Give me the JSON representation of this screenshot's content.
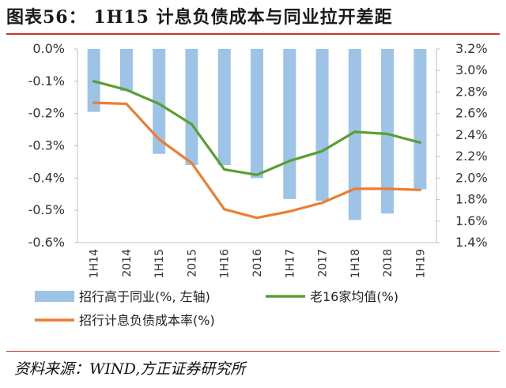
{
  "header": {
    "title": "图表56：  1H15 计息负债成本与同业拉开差距"
  },
  "footer": {
    "source": "资料来源：WIND,方正证券研究所"
  },
  "colors": {
    "bar": "#9dc3e6",
    "avg_line": "#5a9e32",
    "rate_line": "#ed7d31",
    "rule": "#c0392b"
  },
  "chart_data": {
    "type": "bar+line",
    "categories": [
      "1H14",
      "2014",
      "1H15",
      "2015",
      "1H16",
      "2016",
      "1H17",
      "2017",
      "1H18",
      "2018",
      "1H19"
    ],
    "left_axis": {
      "min": -0.6,
      "max": 0.0,
      "step": 0.1,
      "ticks": [
        "0.0%",
        "-0.1%",
        "-0.2%",
        "-0.3%",
        "-0.4%",
        "-0.5%",
        "-0.6%"
      ]
    },
    "right_axis": {
      "min": 1.4,
      "max": 3.2,
      "step": 0.2,
      "ticks": [
        "3.2%",
        "3.0%",
        "2.8%",
        "2.6%",
        "2.4%",
        "2.2%",
        "2.0%",
        "1.8%",
        "1.6%",
        "1.4%"
      ]
    },
    "series": [
      {
        "name": "招行高于同业(%, 左轴)",
        "type": "bar",
        "axis": "left",
        "values": [
          -0.195,
          -0.13,
          -0.325,
          -0.36,
          -0.36,
          -0.4,
          -0.465,
          -0.47,
          -0.53,
          -0.51,
          -0.435
        ]
      },
      {
        "name": "老16家均值(%)",
        "type": "line",
        "axis": "right",
        "values": [
          2.9,
          2.82,
          2.69,
          2.5,
          2.08,
          2.03,
          2.16,
          2.25,
          2.43,
          2.41,
          2.33
        ]
      },
      {
        "name": "招行计息负债成本率(%)",
        "type": "line",
        "axis": "right",
        "values": [
          2.7,
          2.69,
          2.36,
          2.14,
          1.71,
          1.63,
          1.69,
          1.77,
          1.9,
          1.9,
          1.89
        ]
      }
    ],
    "legend": [
      {
        "label": "招行高于同业(%, 左轴)"
      },
      {
        "label": "老16家均值(%)"
      },
      {
        "label": "招行计息负债成本率(%)"
      }
    ]
  }
}
